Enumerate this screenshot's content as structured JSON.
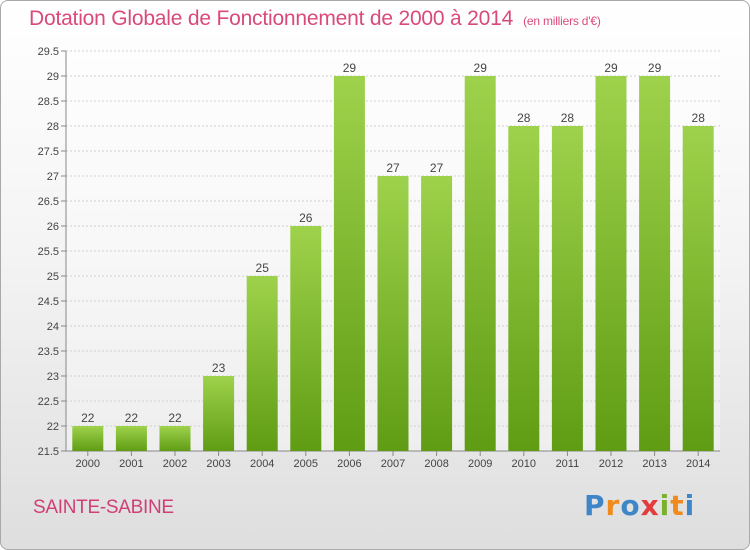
{
  "header": {
    "title": "Dotation Globale de Fonctionnement de 2000 à 2014",
    "unit": "(en milliers d'€)"
  },
  "footer": {
    "city": "SAINTE-SABINE",
    "logo_letters": [
      "P",
      "r",
      "o",
      "x",
      "i",
      "t",
      "i"
    ],
    "logo_colors": [
      "#3f86c8",
      "#f08a1c",
      "#3f86c8",
      "#e23c3c",
      "#79b12c",
      "#f08a1c",
      "#3f86c8"
    ]
  },
  "chart_data": {
    "type": "bar",
    "title": "Dotation Globale de Fonctionnement de 2000 à 2014",
    "subtitle": "(en milliers d'€)",
    "xlabel": "",
    "ylabel": "",
    "categories": [
      "2000",
      "2001",
      "2002",
      "2003",
      "2004",
      "2005",
      "2006",
      "2007",
      "2008",
      "2009",
      "2010",
      "2011",
      "2012",
      "2013",
      "2014"
    ],
    "values": [
      22,
      22,
      22,
      23,
      25,
      26,
      29,
      27,
      27,
      29,
      28,
      28,
      29,
      29,
      28
    ],
    "ylim": [
      21.5,
      29.5
    ],
    "yticks": [
      "21.5",
      "22",
      "22.5",
      "23",
      "23.5",
      "24",
      "24.5",
      "25",
      "25.5",
      "26",
      "26.5",
      "27",
      "27.5",
      "28",
      "28.5",
      "29",
      "29.5"
    ],
    "grid": true,
    "bar_color_top": "#9fd24c",
    "bar_color_bottom": "#5f9c14"
  }
}
